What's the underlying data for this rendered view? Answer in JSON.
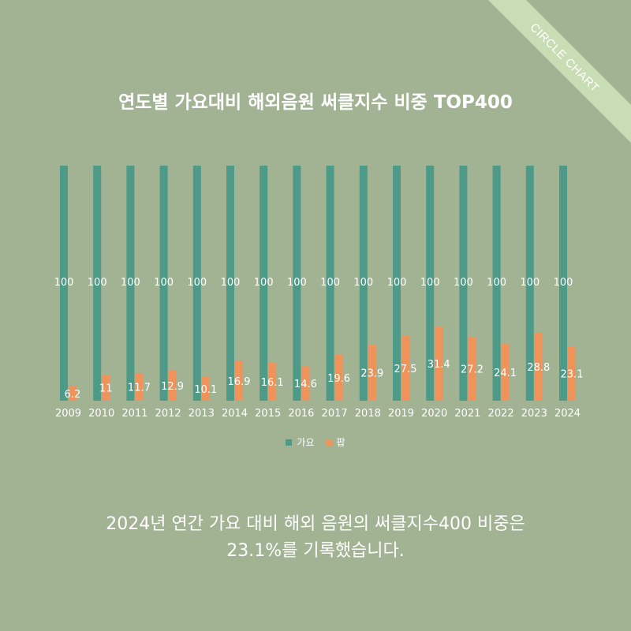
{
  "ribbon": {
    "text": "CIRCLE CHART"
  },
  "caption": {
    "line1": "2024년 연간 가요 대비 해외 음원의 써클지수400 비중은",
    "line2": "23.1%를 기록했습니다."
  },
  "colors": {
    "background": "#a2b394",
    "gayo": "#4e9a88",
    "pop": "#f0935a",
    "label": "#ffffff"
  },
  "chart_data": {
    "type": "bar",
    "title": "연도별 가요대비 해외음원 써클지수 비중 TOP400",
    "categories": [
      "2009",
      "2010",
      "2011",
      "2012",
      "2013",
      "2014",
      "2015",
      "2016",
      "2017",
      "2018",
      "2019",
      "2020",
      "2021",
      "2022",
      "2023",
      "2024"
    ],
    "series": [
      {
        "name": "가요",
        "values": [
          100,
          100,
          100,
          100,
          100,
          100,
          100,
          100,
          100,
          100,
          100,
          100,
          100,
          100,
          100,
          100
        ]
      },
      {
        "name": "팝",
        "values": [
          6.2,
          11,
          11.7,
          12.9,
          10.1,
          16.9,
          16.1,
          14.6,
          19.6,
          23.9,
          27.5,
          31.4,
          27.2,
          24.1,
          28.8,
          23.1
        ]
      }
    ],
    "ylim": [
      0,
      100
    ],
    "legend_position": "bottom",
    "grid": false,
    "data_labels": true
  }
}
